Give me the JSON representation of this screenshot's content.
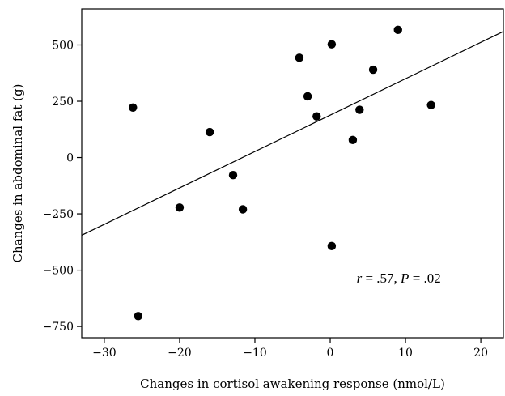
{
  "chart_data": {
    "type": "scatter",
    "xlabel": "Changes in cortisol awakening response (nmol/L)",
    "ylabel": "Changes in abdominal fat (g)",
    "xlim": [
      -33,
      23
    ],
    "ylim": [
      -800,
      660
    ],
    "xticks": [
      -30,
      -20,
      -10,
      0,
      10,
      20
    ],
    "yticks": [
      -750,
      -500,
      -250,
      0,
      250,
      500
    ],
    "xtick_labels": [
      "−30",
      "−20",
      "−10",
      "0",
      "10",
      "20"
    ],
    "ytick_labels": [
      "−750",
      "−500",
      "−250",
      "0",
      "250",
      "500"
    ],
    "points": [
      {
        "x": -26.2,
        "y": 222
      },
      {
        "x": -25.5,
        "y": -704
      },
      {
        "x": -20.0,
        "y": -222
      },
      {
        "x": -16.0,
        "y": 113
      },
      {
        "x": -12.9,
        "y": -78
      },
      {
        "x": -11.6,
        "y": -230
      },
      {
        "x": -4.1,
        "y": 443
      },
      {
        "x": -3.0,
        "y": 272
      },
      {
        "x": -1.8,
        "y": 183
      },
      {
        "x": 0.2,
        "y": 503
      },
      {
        "x": 0.2,
        "y": -393
      },
      {
        "x": 3.0,
        "y": 78
      },
      {
        "x": 3.9,
        "y": 212
      },
      {
        "x": 5.7,
        "y": 390
      },
      {
        "x": 9.0,
        "y": 567
      },
      {
        "x": 13.4,
        "y": 233
      }
    ],
    "regression_line": {
      "x": [
        -33,
        23
      ],
      "y": [
        -345,
        560
      ]
    },
    "annotation": {
      "r_symbol": "r",
      "r_text": " = .57, ",
      "p_symbol": "P",
      "p_text": " = .02",
      "x": 3.5,
      "y": -555
    },
    "grid": false,
    "legend": "none"
  }
}
